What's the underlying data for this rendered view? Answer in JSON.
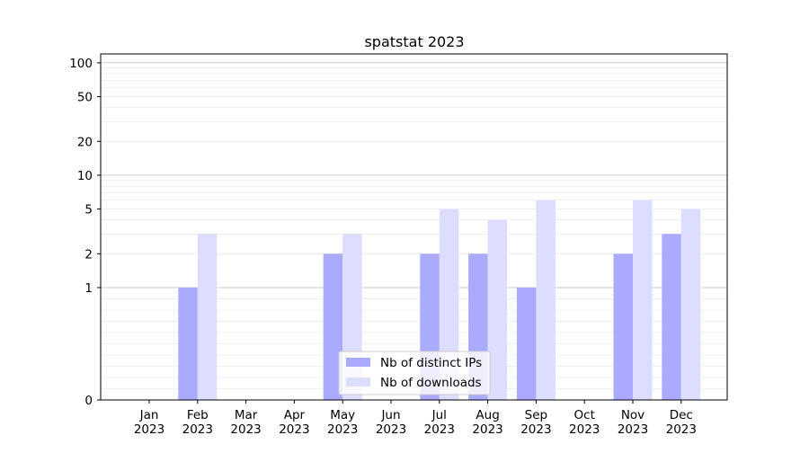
{
  "chart_data": {
    "type": "bar",
    "title": "spatstat 2023",
    "xlabel": "",
    "ylabel": "",
    "y_scale": "symlog",
    "y_ticks": [
      0,
      1,
      2,
      5,
      10,
      20,
      50,
      100
    ],
    "ylim": [
      0,
      120
    ],
    "grid": true,
    "legend_position": "bottom-center",
    "categories": [
      {
        "month": "Jan",
        "year": "2023"
      },
      {
        "month": "Feb",
        "year": "2023"
      },
      {
        "month": "Mar",
        "year": "2023"
      },
      {
        "month": "Apr",
        "year": "2023"
      },
      {
        "month": "May",
        "year": "2023"
      },
      {
        "month": "Jun",
        "year": "2023"
      },
      {
        "month": "Jul",
        "year": "2023"
      },
      {
        "month": "Aug",
        "year": "2023"
      },
      {
        "month": "Sep",
        "year": "2023"
      },
      {
        "month": "Oct",
        "year": "2023"
      },
      {
        "month": "Nov",
        "year": "2023"
      },
      {
        "month": "Dec",
        "year": "2023"
      }
    ],
    "series": [
      {
        "name": "Nb of distinct IPs",
        "color": "#aaaaff",
        "values": [
          0,
          1,
          0,
          0,
          2,
          0,
          2,
          2,
          1,
          0,
          2,
          3
        ]
      },
      {
        "name": "Nb of downloads",
        "color": "#ddddff",
        "values": [
          0,
          3,
          0,
          0,
          3,
          0,
          5,
          4,
          6,
          0,
          6,
          5
        ]
      }
    ]
  }
}
